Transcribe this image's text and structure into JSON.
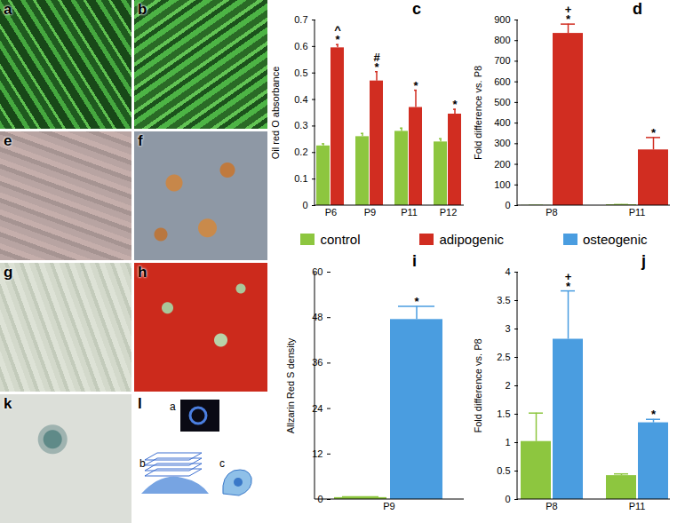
{
  "chart_data": [
    {
      "type": "bar",
      "title": "c",
      "y_label": "Oil red O absorbance",
      "categories": [
        "P6",
        "P9",
        "P11",
        "P12"
      ],
      "series": [
        {
          "name": "control",
          "color": "#8dc63f",
          "values": [
            0.225,
            0.26,
            0.28,
            0.24
          ],
          "errors": [
            0.008,
            0.012,
            0.012,
            0.012
          ]
        },
        {
          "name": "adipogenic",
          "color": "#d12d21",
          "values": [
            0.595,
            0.47,
            0.37,
            0.345
          ],
          "errors": [
            0.012,
            0.035,
            0.065,
            0.018
          ]
        }
      ],
      "annotations": [
        {
          "category": "P6",
          "series": "adipogenic",
          "text": "*"
        },
        {
          "category": "P6",
          "series": "adipogenic",
          "text": "^"
        },
        {
          "category": "P9",
          "series": "adipogenic",
          "text": "*"
        },
        {
          "category": "P9",
          "series": "adipogenic",
          "text": "#"
        },
        {
          "category": "P11",
          "series": "adipogenic",
          "text": "*"
        },
        {
          "category": "P12",
          "series": "adipogenic",
          "text": "*"
        }
      ],
      "ylim": [
        0,
        0.7
      ],
      "yticks": [
        0,
        0.1,
        0.2,
        0.3,
        0.4,
        0.5,
        0.6,
        0.7
      ]
    },
    {
      "type": "bar",
      "title": "d",
      "y_label": "Fold difference vs. P8",
      "categories": [
        "P8",
        "P11"
      ],
      "series": [
        {
          "name": "control",
          "color": "#8dc63f",
          "values": [
            1,
            4
          ],
          "errors": [
            0,
            1
          ]
        },
        {
          "name": "adipogenic",
          "color": "#d12d21",
          "values": [
            835,
            270
          ],
          "errors": [
            45,
            60
          ]
        }
      ],
      "annotations": [
        {
          "category": "P8",
          "series": "adipogenic",
          "text": "*"
        },
        {
          "category": "P8",
          "series": "adipogenic",
          "text": "+"
        },
        {
          "category": "P11",
          "series": "adipogenic",
          "text": "*"
        }
      ],
      "ylim": [
        0,
        900
      ],
      "yticks": [
        0,
        100,
        200,
        300,
        400,
        500,
        600,
        700,
        800,
        900
      ]
    },
    {
      "type": "bar",
      "title": "i",
      "y_label": "Allzarin Red S density",
      "categories": [
        "P9"
      ],
      "series": [
        {
          "name": "control",
          "color": "#8dc63f",
          "values": [
            0.5
          ],
          "errors": [
            0.2
          ]
        },
        {
          "name": "osteogenic",
          "color": "#4a9de0",
          "values": [
            47.5
          ],
          "errors": [
            3.5
          ]
        }
      ],
      "annotations": [
        {
          "category": "P9",
          "series": "osteogenic",
          "text": "*"
        }
      ],
      "ylim": [
        0,
        60
      ],
      "yticks": [
        0,
        12,
        24,
        36,
        48,
        60
      ]
    },
    {
      "type": "bar",
      "title": "j",
      "y_label": "Fold difference vs. P8",
      "categories": [
        "P8",
        "P11"
      ],
      "series": [
        {
          "name": "control",
          "color": "#8dc63f",
          "values": [
            1.02,
            0.42
          ],
          "errors": [
            0.5,
            0.03
          ]
        },
        {
          "name": "osteogenic",
          "color": "#4a9de0",
          "values": [
            2.82,
            1.35
          ],
          "errors": [
            0.85,
            0.06
          ]
        }
      ],
      "annotations": [
        {
          "category": "P8",
          "series": "osteogenic",
          "text": "*"
        },
        {
          "category": "P8",
          "series": "osteogenic",
          "text": "+"
        },
        {
          "category": "P11",
          "series": "osteogenic",
          "text": "*"
        }
      ],
      "ylim": [
        0,
        4
      ],
      "yticks": [
        0,
        0.5,
        1,
        1.5,
        2,
        2.5,
        3,
        3.5,
        4
      ]
    }
  ],
  "legend": [
    {
      "name": "control",
      "color": "#8dc63f"
    },
    {
      "name": "adipogenic",
      "color": "#d12d21"
    },
    {
      "name": "osteogenic",
      "color": "#4a9de0"
    }
  ],
  "image_panels": [
    {
      "label": "a"
    },
    {
      "label": "b"
    },
    {
      "label": "e"
    },
    {
      "label": "f"
    },
    {
      "label": "g"
    },
    {
      "label": "h"
    },
    {
      "label": "k"
    },
    {
      "label": "l",
      "sublabels": [
        "a",
        "b",
        "c"
      ]
    }
  ]
}
